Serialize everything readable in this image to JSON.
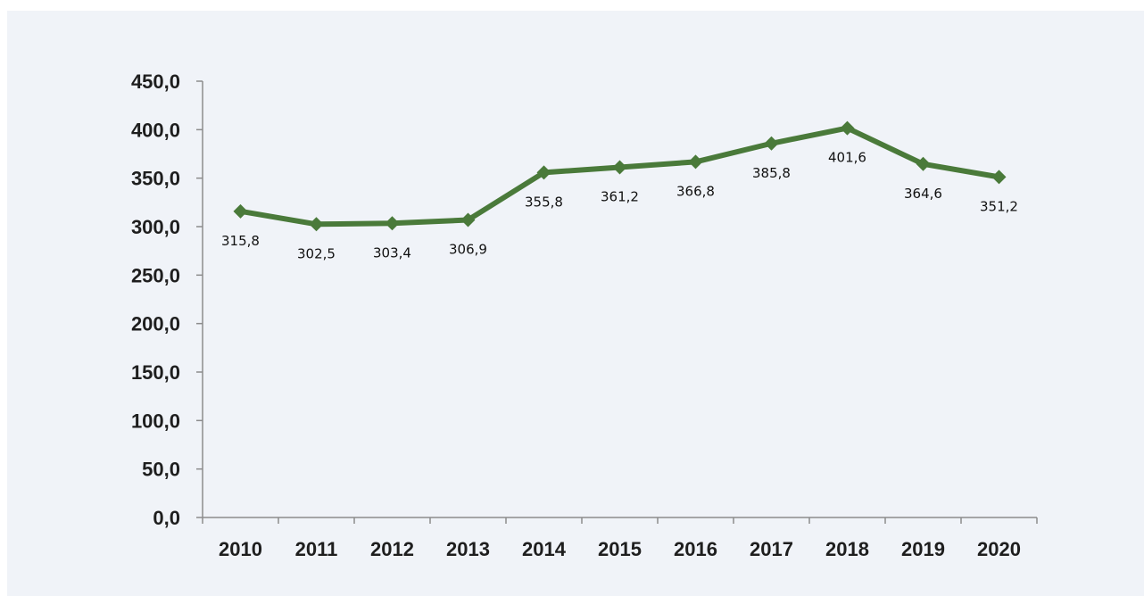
{
  "chart_data": {
    "type": "line",
    "title": "",
    "xlabel": "",
    "ylabel": "",
    "categories": [
      "2010",
      "2011",
      "2012",
      "2013",
      "2014",
      "2015",
      "2016",
      "2017",
      "2018",
      "2019",
      "2020"
    ],
    "series": [
      {
        "values": [
          315.8,
          302.5,
          303.4,
          306.9,
          355.8,
          361.2,
          366.8,
          385.8,
          401.6,
          364.6,
          351.2
        ],
        "labels": [
          "315,8",
          "302,5",
          "303,4",
          "306,9",
          "355,8",
          "361,2",
          "366,8",
          "385,8",
          "401,6",
          "364,6",
          "351,2"
        ]
      }
    ],
    "ylim": [
      0,
      450
    ],
    "yticks": [
      0,
      50,
      100,
      150,
      200,
      250,
      300,
      350,
      400,
      450
    ],
    "ytick_labels": [
      "0,0",
      "50,0",
      "100,0",
      "150,0",
      "200,0",
      "250,0",
      "300,0",
      "350,0",
      "400,0",
      "450,0"
    ],
    "grid": false,
    "legend": "none",
    "marker": "diamond",
    "line_color": "#4a7a3a",
    "background_color": "#f0f3f8",
    "axis_color": "#8c8c8c"
  }
}
